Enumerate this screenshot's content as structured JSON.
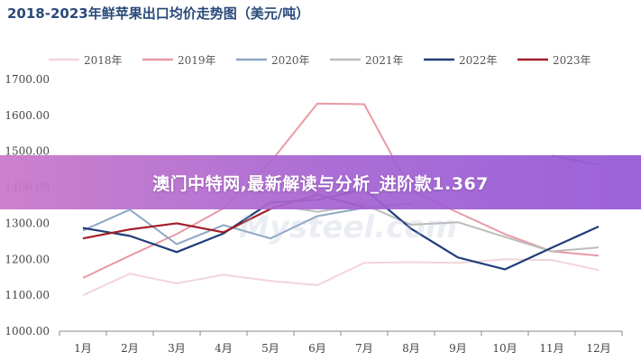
{
  "chart_data": {
    "type": "line",
    "title": "2018-2023年鲜苹果出口均价走势图（美元/吨）",
    "categories": [
      "1月",
      "2月",
      "3月",
      "4月",
      "5月",
      "6月",
      "7月",
      "8月",
      "9月",
      "10月",
      "11月",
      "12月"
    ],
    "ylim": [
      1000,
      1700
    ],
    "yticks": [
      "1000.00",
      "1100.00",
      "1200.00",
      "1300.00",
      "1400.00",
      "1500.00",
      "1600.00",
      "1700.00"
    ],
    "grid": false,
    "legend_position": "top",
    "series": [
      {
        "name": "2018年",
        "color": "#f2d5d9",
        "values": [
          1100,
          1160,
          1133,
          1157,
          1140,
          1128,
          1190,
          1192,
          1190,
          1200,
          1198,
          1170
        ]
      },
      {
        "name": "2019年",
        "color": "#e89aa5",
        "values": [
          1148,
          1210,
          1270,
          1342,
          1470,
          1633,
          1631,
          1390,
          1330,
          1270,
          1222,
          1210
        ]
      },
      {
        "name": "2020年",
        "color": "#8fa6c4",
        "values": [
          1280,
          1338,
          1242,
          1295,
          1258,
          1320,
          1343,
          1355,
          null,
          null,
          null,
          null
        ]
      },
      {
        "name": "2021年",
        "color": "#bcbcbc",
        "values": [
          null,
          null,
          null,
          null,
          1352,
          1332,
          1352,
          1296,
          1303,
          1262,
          1222,
          1233
        ]
      },
      {
        "name": "2022年",
        "color": "#1f3d7a",
        "values": [
          1287,
          1265,
          1220,
          1272,
          1358,
          1365,
          1395,
          1285,
          1205,
          1172,
          1232,
          1291
        ]
      },
      {
        "name": "2023年",
        "color": "#a11e2a",
        "values": [
          1258,
          1283,
          1300,
          1275,
          1340,
          1380,
          1345,
          null,
          null,
          null,
          null,
          null
        ]
      },
      {
        "name": "",
        "color": "#8c6fb4",
        "values": [
          1399,
          null,
          null,
          null,
          null,
          null,
          null,
          null,
          null,
          null,
          1488,
          1462
        ]
      }
    ]
  },
  "banner": {
    "text": "澳门中特网,最新解读与分析_进阶款1.367"
  },
  "watermark": {
    "text": "Mysteel.com"
  }
}
